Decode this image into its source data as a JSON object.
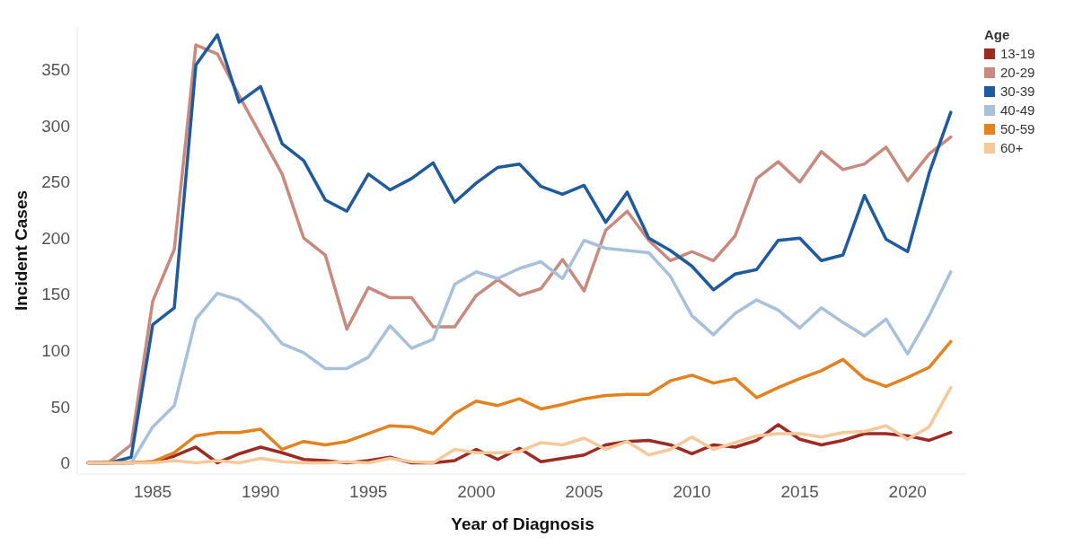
{
  "chart_data": {
    "type": "line",
    "xlabel": "Year of Diagnosis",
    "ylabel": "Incident Cases",
    "legend_title": "Age",
    "legend": "right",
    "grid": false,
    "line_style": "solid",
    "x": [
      1982,
      1983,
      1984,
      1985,
      1986,
      1987,
      1988,
      1989,
      1990,
      1991,
      1992,
      1993,
      1994,
      1995,
      1996,
      1997,
      1998,
      1999,
      2000,
      2001,
      2002,
      2003,
      2004,
      2005,
      2006,
      2007,
      2008,
      2009,
      2010,
      2011,
      2012,
      2013,
      2014,
      2015,
      2016,
      2017,
      2018,
      2019,
      2020,
      2021,
      2022
    ],
    "xlim": [
      1981.5,
      2022.8
    ],
    "xticks": [
      1985,
      1990,
      1995,
      2000,
      2005,
      2010,
      2015,
      2020
    ],
    "ylim": [
      -10,
      388
    ],
    "yticks": [
      0,
      50,
      100,
      150,
      200,
      250,
      300,
      350
    ],
    "series": [
      {
        "name": "13-19",
        "color": "#9e2a22",
        "values": [
          0,
          0,
          0,
          1,
          6,
          14,
          0,
          8,
          14,
          9,
          3,
          2,
          0,
          2,
          5,
          0,
          0,
          2,
          12,
          3,
          13,
          1,
          4,
          7,
          16,
          19,
          20,
          16,
          8,
          16,
          14,
          20,
          34,
          21,
          16,
          20,
          26,
          26,
          24,
          20,
          27
        ]
      },
      {
        "name": "20-29",
        "color": "#c98a7d",
        "values": [
          0,
          1,
          16,
          144,
          190,
          372,
          364,
          327,
          292,
          257,
          200,
          185,
          119,
          156,
          147,
          147,
          121,
          121,
          149,
          163,
          149,
          155,
          181,
          153,
          207,
          224,
          198,
          180,
          188,
          180,
          202,
          253,
          268,
          250,
          277,
          261,
          266,
          281,
          251,
          275,
          290
        ]
      },
      {
        "name": "30-39",
        "color": "#1f5a9e",
        "values": [
          0,
          0,
          5,
          123,
          138,
          354,
          381,
          321,
          335,
          284,
          269,
          234,
          224,
          257,
          243,
          253,
          267,
          232,
          249,
          263,
          266,
          246,
          239,
          247,
          214,
          241,
          200,
          189,
          175,
          154,
          168,
          172,
          198,
          200,
          180,
          185,
          238,
          199,
          188,
          258,
          312
        ]
      },
      {
        "name": "40-49",
        "color": "#a7c0dc",
        "values": [
          0,
          0,
          0,
          32,
          51,
          128,
          151,
          145,
          129,
          106,
          98,
          84,
          84,
          94,
          122,
          102,
          110,
          159,
          170,
          164,
          173,
          179,
          164,
          198,
          191,
          189,
          187,
          166,
          131,
          114,
          133,
          145,
          136,
          120,
          138,
          125,
          113,
          128,
          97,
          131,
          170
        ]
      },
      {
        "name": "50-59",
        "color": "#e3821f",
        "values": [
          0,
          0,
          0,
          1,
          9,
          24,
          27,
          27,
          30,
          12,
          19,
          16,
          19,
          26,
          33,
          32,
          26,
          44,
          55,
          51,
          57,
          48,
          52,
          57,
          60,
          61,
          61,
          73,
          78,
          71,
          75,
          58,
          67,
          75,
          82,
          92,
          75,
          68,
          76,
          85,
          108
        ]
      },
      {
        "name": "60+",
        "color": "#f5c99a",
        "values": [
          0,
          0,
          0,
          0,
          2,
          0,
          2,
          0,
          4,
          1,
          0,
          0,
          1,
          0,
          4,
          1,
          0,
          12,
          9,
          9,
          10,
          18,
          16,
          22,
          12,
          19,
          7,
          12,
          23,
          12,
          18,
          24,
          26,
          26,
          23,
          27,
          28,
          33,
          21,
          32,
          67
        ]
      }
    ]
  }
}
